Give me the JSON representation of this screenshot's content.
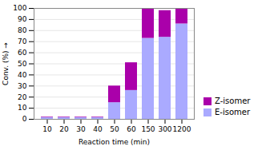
{
  "chart_data": {
    "type": "bar",
    "stacked": true,
    "categories": [
      "10",
      "20",
      "30",
      "40",
      "50",
      "60",
      "150",
      "300",
      "1200"
    ],
    "xlabel": "Reaction time (min)",
    "ylabel": "Conv. (%)",
    "series": [
      {
        "name": "E-isomer",
        "color": "#aaaaff",
        "values": [
          1.5,
          1.5,
          1.5,
          1.5,
          15.0,
          26.0,
          73.0,
          74.0,
          86.0
        ]
      },
      {
        "name": "Z-isomer",
        "color": "#aa00aa",
        "values": [
          0.5,
          0.5,
          0.5,
          0.5,
          15.0,
          25.0,
          27.0,
          24.0,
          14.0
        ]
      }
    ],
    "ylim": [
      0,
      100
    ],
    "yticks": [
      0,
      10,
      20,
      30,
      40,
      50,
      60,
      70,
      80,
      90,
      100
    ],
    "grid": true,
    "legend": "lower right"
  }
}
